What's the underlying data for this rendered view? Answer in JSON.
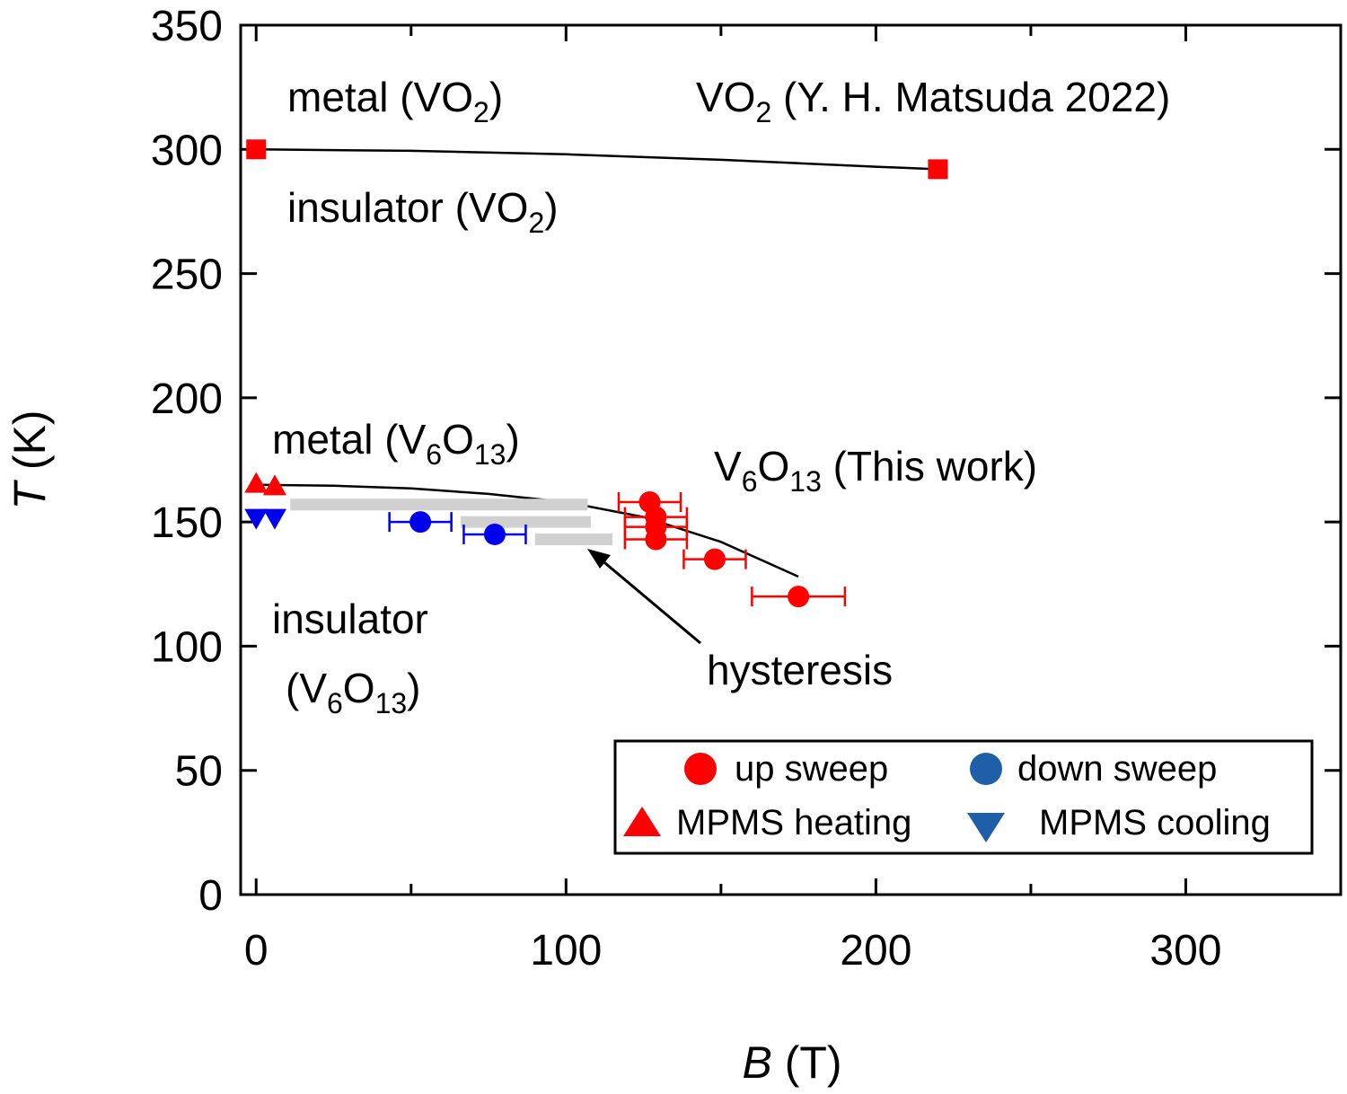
{
  "chart_data": {
    "type": "scatter",
    "xlabel": {
      "symbol": "B",
      "unit": " (T)"
    },
    "ylabel": {
      "symbol": "T",
      "unit": " (K)"
    },
    "xlim": [
      -5,
      350
    ],
    "ylim": [
      0,
      350
    ],
    "x_ticks": [
      "0",
      "100",
      "200",
      "300"
    ],
    "x_tick_values": [
      0,
      100,
      200,
      300
    ],
    "y_ticks": [
      "0",
      "50",
      "100",
      "150",
      "200",
      "250",
      "300",
      "350"
    ],
    "y_tick_values": [
      0,
      50,
      100,
      150,
      200,
      250,
      300,
      350
    ],
    "grid": false,
    "colors": {
      "red": "#ff0000",
      "blue": "#0000ee",
      "legend_blue": "#1f5fa8",
      "curve": "#000000",
      "hysteresis": "#d0d0d0"
    },
    "series": [
      {
        "name": "VO2 (Y. H. Matsuda 2022)",
        "marker": "square",
        "color": "#ff0000",
        "points": [
          {
            "x": 0,
            "y": 300
          },
          {
            "x": 220,
            "y": 292
          }
        ]
      },
      {
        "name": "up sweep",
        "marker": "circle",
        "color": "#ff0000",
        "points": [
          {
            "x": 127,
            "y": 158,
            "xerr": 10
          },
          {
            "x": 129,
            "y": 152,
            "xerr": 10
          },
          {
            "x": 129,
            "y": 148,
            "xerr": 10
          },
          {
            "x": 129,
            "y": 143,
            "xerr": 10
          },
          {
            "x": 148,
            "y": 135,
            "xerr": 10
          },
          {
            "x": 175,
            "y": 120,
            "xerr": 15
          }
        ]
      },
      {
        "name": "down sweep",
        "marker": "circle",
        "color": "#0000ee",
        "points": [
          {
            "x": 53,
            "y": 150,
            "xerr": 10
          },
          {
            "x": 77,
            "y": 145,
            "xerr": 10
          }
        ]
      },
      {
        "name": "MPMS heating",
        "marker": "triangle-up",
        "color": "#ff0000",
        "points": [
          {
            "x": 0,
            "y": 165
          },
          {
            "x": 6,
            "y": 164
          }
        ]
      },
      {
        "name": "MPMS cooling",
        "marker": "triangle-down",
        "color": "#0000ee",
        "points": [
          {
            "x": 0,
            "y": 152
          },
          {
            "x": 6,
            "y": 152
          }
        ]
      }
    ],
    "curves": [
      {
        "name": "VO2 boundary",
        "points": [
          [
            0,
            300
          ],
          [
            50,
            299.4
          ],
          [
            100,
            298
          ],
          [
            150,
            295.8
          ],
          [
            200,
            293
          ],
          [
            220,
            292
          ]
        ]
      },
      {
        "name": "V6O13 boundary",
        "points": [
          [
            0,
            165
          ],
          [
            25,
            164.6
          ],
          [
            50,
            163.5
          ],
          [
            75,
            161.3
          ],
          [
            100,
            158
          ],
          [
            125,
            152
          ],
          [
            150,
            142
          ],
          [
            175,
            128
          ]
        ]
      }
    ],
    "hysteresis_bars": [
      {
        "x0": 11,
        "x1": 107,
        "y": 157
      },
      {
        "x0": 66,
        "x1": 108,
        "y": 150
      },
      {
        "x0": 90,
        "x1": 115,
        "y": 143
      }
    ],
    "annotations": {
      "metal_vo2": {
        "text": "metal (VO",
        "sub": "2",
        "tail": ")"
      },
      "insulator_vo2": {
        "text": "insulator (VO",
        "sub": "2",
        "tail": ")"
      },
      "vo2_ref": {
        "pre": "VO",
        "sub": "2",
        "text": " (Y. H. Matsuda 2022)"
      },
      "metal_v6o13": {
        "a": "metal (V",
        "s1": "6",
        "b": "O",
        "s2": "13",
        "c": ")"
      },
      "v6o13_ref": {
        "a": "V",
        "s1": "6",
        "b": "O",
        "s2": "13",
        "c": " (This work)"
      },
      "insulator_v6o13_line1": "insulator",
      "insulator_v6o13_line2": {
        "a": "(V",
        "s1": "6",
        "b": "O",
        "s2": "13",
        "c": ")"
      },
      "hysteresis": "hysteresis"
    },
    "legend": [
      {
        "label": "up sweep",
        "marker": "circle",
        "color": "#ff0000"
      },
      {
        "label": "down sweep",
        "marker": "circle",
        "color": "#1f5fa8"
      },
      {
        "label": "MPMS heating",
        "marker": "triangle-up",
        "color": "#ff0000"
      },
      {
        "label": "MPMS cooling",
        "marker": "triangle-down",
        "color": "#1f5fa8"
      }
    ],
    "legend_position": "bottom-right"
  }
}
